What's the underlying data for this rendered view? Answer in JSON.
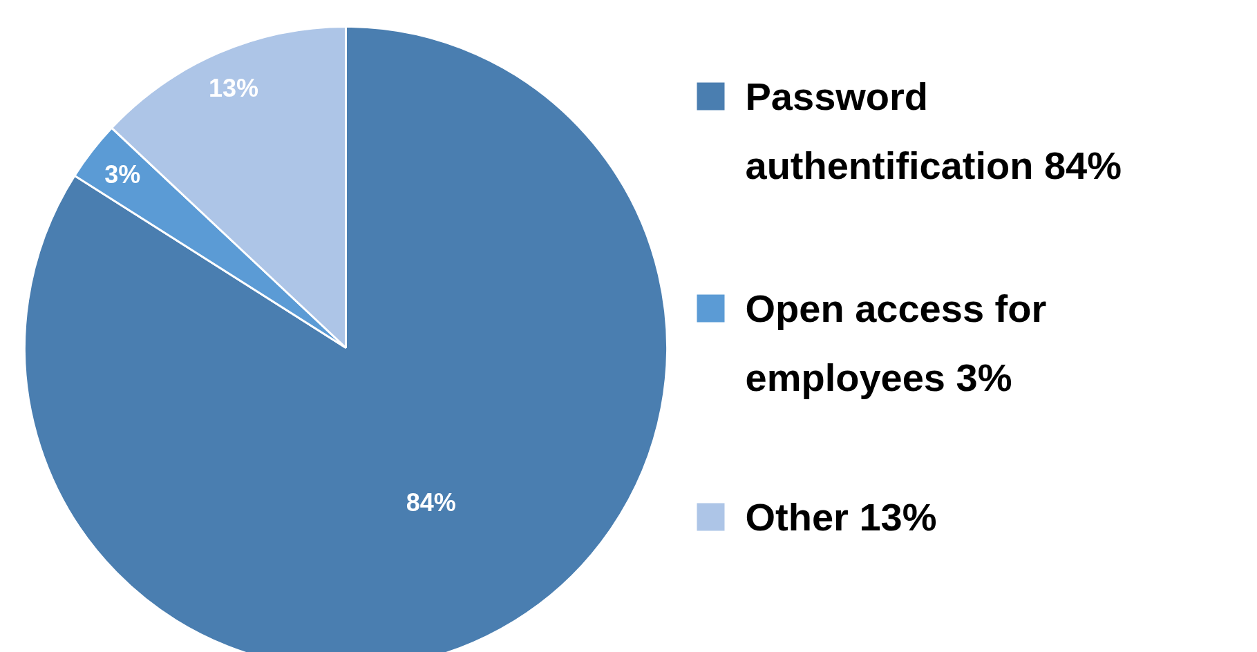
{
  "chart_data": {
    "type": "pie",
    "categories": [
      "Password authentification 84%",
      "Open access for employees 3%",
      "Other 13%"
    ],
    "values": [
      84,
      3,
      13
    ],
    "colors": [
      "#4a7eb0",
      "#5b9bd5",
      "#adc5e7"
    ],
    "value_labels": [
      "84%",
      "3%",
      "13%"
    ],
    "legend": "right"
  }
}
